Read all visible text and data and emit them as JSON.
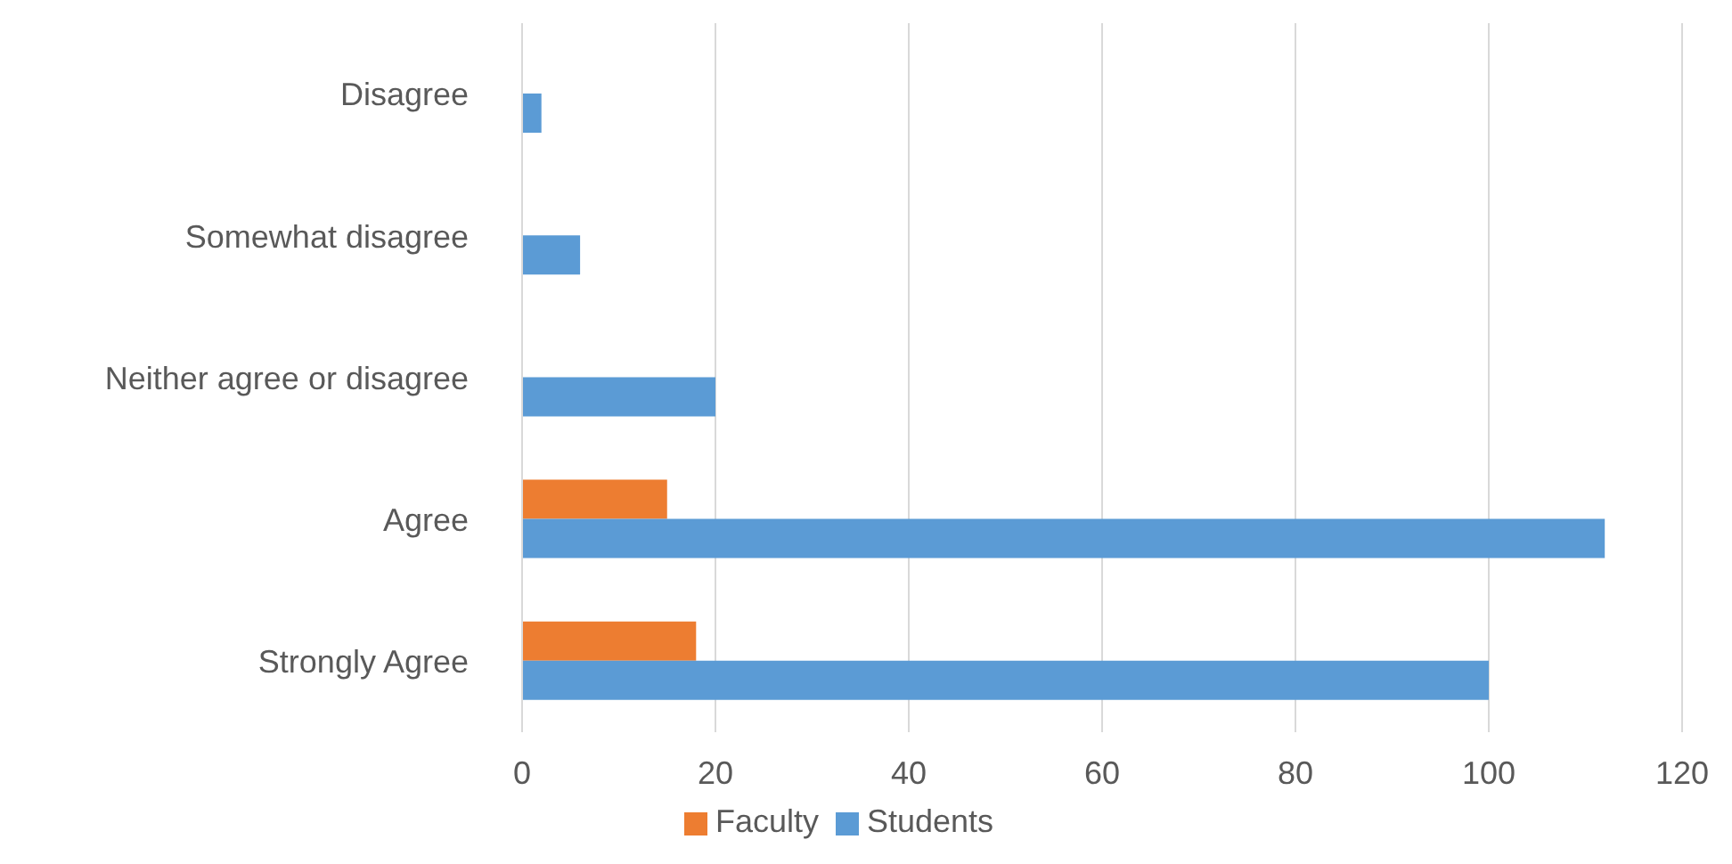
{
  "chart_data": {
    "type": "bar",
    "orientation": "horizontal",
    "categories": [
      "Disagree",
      "Somewhat disagree",
      "Neither agree or disagree",
      "Agree",
      "Strongly Agree"
    ],
    "series": [
      {
        "name": "Faculty",
        "color": "#ed7d31",
        "values": [
          null,
          null,
          null,
          15,
          18
        ]
      },
      {
        "name": "Students",
        "color": "#5b9bd5",
        "values": [
          2,
          6,
          20,
          112,
          100
        ]
      }
    ],
    "xlim": [
      0,
      120
    ],
    "xticks": [
      0,
      20,
      40,
      60,
      80,
      100,
      120
    ],
    "grid": "x",
    "legend": "bottom"
  }
}
